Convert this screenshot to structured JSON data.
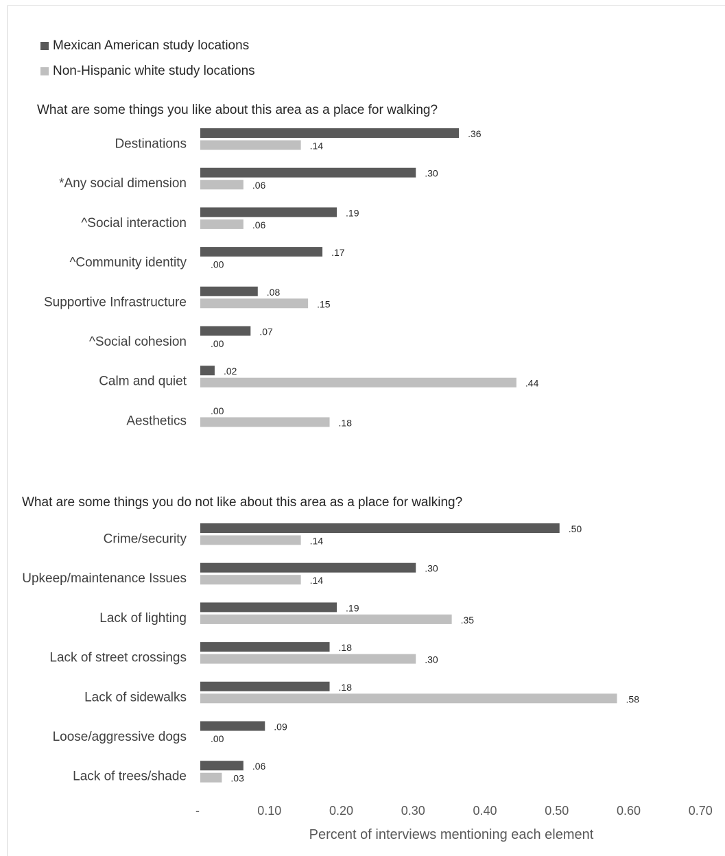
{
  "colors": {
    "mexican_american": "#595959",
    "non_hispanic_white": "#bfbfbf"
  },
  "legend": {
    "items": [
      {
        "label": "Mexican American study locations",
        "color": "#595959"
      },
      {
        "label": "Non-Hispanic white study locations",
        "color": "#bfbfbf"
      }
    ]
  },
  "chart_data": {
    "type": "bar",
    "orientation": "horizontal",
    "xlabel": "Percent of interviews mentioning each element",
    "xlim": [
      0,
      0.7
    ],
    "ticks": [
      "-",
      "0.10",
      "0.20",
      "0.30",
      "0.40",
      "0.50",
      "0.60",
      "0.70"
    ],
    "tick_values": [
      0,
      0.1,
      0.2,
      0.3,
      0.4,
      0.5,
      0.6,
      0.7
    ],
    "grid": false,
    "legend_position": "top-left",
    "series_names": [
      "Mexican American study locations",
      "Non-Hispanic white study locations"
    ],
    "panels": [
      {
        "title": "What are some things you like about this area as a place for walking?",
        "categories": [
          "Destinations",
          "*Any social dimension",
          "^Social interaction",
          "^Community identity",
          "Supportive Infrastructure",
          "^Social cohesion",
          "Calm and quiet",
          "Aesthetics"
        ],
        "series": [
          {
            "name": "Mexican American study locations",
            "values": [
              0.36,
              0.3,
              0.19,
              0.17,
              0.08,
              0.07,
              0.02,
              0.0
            ],
            "labels": [
              ".36",
              ".30",
              ".19",
              ".17",
              ".08",
              ".07",
              ".02",
              ".00"
            ]
          },
          {
            "name": "Non-Hispanic white study locations",
            "values": [
              0.14,
              0.06,
              0.06,
              0.0,
              0.15,
              0.0,
              0.44,
              0.18
            ],
            "labels": [
              ".14",
              ".06",
              ".06",
              ".00",
              ".15",
              ".00",
              ".44",
              ".18"
            ]
          }
        ]
      },
      {
        "title": "What are some things you do not like about this area as a place for walking?",
        "categories": [
          "Crime/security",
          "Upkeep/maintenance Issues",
          "Lack of lighting",
          "Lack of street crossings",
          "Lack of sidewalks",
          "Loose/aggressive dogs",
          "Lack of trees/shade"
        ],
        "series": [
          {
            "name": "Mexican American study locations",
            "values": [
              0.5,
              0.3,
              0.19,
              0.18,
              0.18,
              0.09,
              0.06
            ],
            "labels": [
              ".50",
              ".30",
              ".19",
              ".18",
              ".18",
              ".09",
              ".06"
            ]
          },
          {
            "name": "Non-Hispanic white study locations",
            "values": [
              0.14,
              0.14,
              0.35,
              0.3,
              0.58,
              0.0,
              0.03
            ],
            "labels": [
              ".14",
              ".14",
              ".35",
              ".30",
              ".58",
              ".00",
              ".03"
            ]
          }
        ]
      }
    ]
  }
}
